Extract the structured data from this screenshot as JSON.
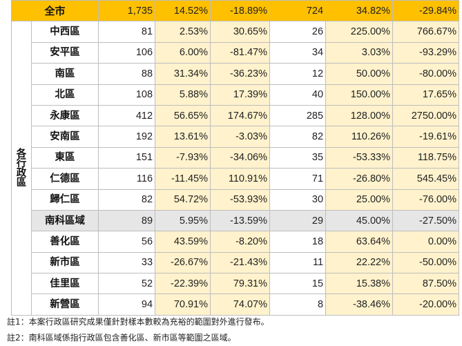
{
  "group_label_chars": [
    "各",
    "行",
    "政",
    "區"
  ],
  "total": {
    "name": "全市",
    "values": [
      "1,735",
      "14.52%",
      "-18.89%",
      "724",
      "34.82%",
      "-29.84%"
    ]
  },
  "rows": [
    {
      "name": "中西區",
      "values": [
        "81",
        "2.53%",
        "30.65%",
        "26",
        "225.00%",
        "766.67%"
      ]
    },
    {
      "name": "安平區",
      "values": [
        "106",
        "6.00%",
        "-81.47%",
        "34",
        "3.03%",
        "-93.29%"
      ]
    },
    {
      "name": "南區",
      "values": [
        "88",
        "31.34%",
        "-36.23%",
        "12",
        "50.00%",
        "-80.00%"
      ]
    },
    {
      "name": "北區",
      "values": [
        "108",
        "5.88%",
        "17.39%",
        "40",
        "150.00%",
        "17.65%"
      ]
    },
    {
      "name": "永康區",
      "values": [
        "412",
        "56.65%",
        "174.67%",
        "285",
        "128.00%",
        "2750.00%"
      ]
    },
    {
      "name": "安南區",
      "values": [
        "192",
        "13.61%",
        "-3.03%",
        "82",
        "110.26%",
        "-19.61%"
      ]
    },
    {
      "name": "東區",
      "values": [
        "151",
        "-7.93%",
        "-34.06%",
        "35",
        "-53.33%",
        "118.75%"
      ]
    },
    {
      "name": "仁德區",
      "values": [
        "116",
        "-11.45%",
        "110.91%",
        "71",
        "-26.80%",
        "545.45%"
      ]
    },
    {
      "name": "歸仁區",
      "values": [
        "82",
        "54.72%",
        "-53.93%",
        "30",
        "25.00%",
        "-76.00%"
      ]
    },
    {
      "name": "南科區域",
      "values": [
        "89",
        "5.95%",
        "-13.59%",
        "29",
        "45.00%",
        "-27.50%"
      ]
    },
    {
      "name": "善化區",
      "values": [
        "56",
        "43.59%",
        "-8.20%",
        "18",
        "63.64%",
        "0.00%"
      ]
    },
    {
      "name": "新市區",
      "values": [
        "33",
        "-26.67%",
        "-21.43%",
        "11",
        "22.22%",
        "-50.00%"
      ]
    },
    {
      "name": "佳里區",
      "values": [
        "52",
        "-22.39%",
        "79.31%",
        "15",
        "15.38%",
        "87.50%"
      ]
    },
    {
      "name": "新營區",
      "values": [
        "94",
        "70.91%",
        "74.07%",
        "8",
        "-38.46%",
        "-20.00%"
      ]
    }
  ],
  "notes": [
    "註1：本案行政區研究成果僅針對樣本數較為充裕的範圍對外進行發布。",
    "註2：南科區域係指行政區包含善化區、新市區等範圍之區域。"
  ],
  "colors": {
    "total_bg": "#ffc000",
    "pct_bg": "#fff2cc",
    "highlight_bg": "#e6e6e6",
    "border": "#bdbdbd"
  }
}
